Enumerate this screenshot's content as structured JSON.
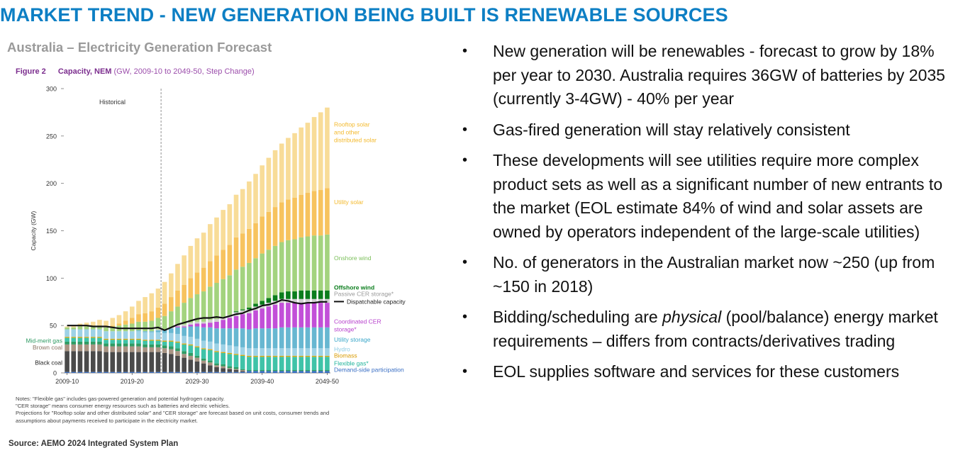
{
  "page_title": "MARKET TREND - NEW GENERATION BEING BUILT IS RENEWABLE SOURCES",
  "chart_heading": "Australia – Electricity Generation Forecast",
  "figure": {
    "number": "Figure 2",
    "caption": "Capacity, NEM",
    "detail": "(GW, 2009-10 to 2049-50, Step Change)"
  },
  "notes": [
    "Notes: \"Flexible gas\" includes gas-powered generation and potential hydrogen capacity.",
    "\"CER storage\" means consumer energy resources such as batteries and electric vehicles.",
    "Projections for \"Rooftop solar and other distributed solar\" and \"CER storage\" are forecast based on unit costs, consumer trends and",
    "assumptions about payments received to participate in the electricity market."
  ],
  "source": "Source: AEMO 2024 Integrated System Plan",
  "bullets": [
    {
      "pre": "New generation will be renewables - forecast to grow by 18% per year to 2030. Australia requires 36GW of batteries by 2035 (currently 3-4GW) - 40% per year",
      "em": "",
      "post": ""
    },
    {
      "pre": "Gas-fired generation will stay relatively consistent",
      "em": "",
      "post": ""
    },
    {
      "pre": "These developments will see utilities require more complex product sets as well as a significant number of new entrants to the market (EOL estimate 84% of wind and solar assets are owned by operators independent of the large-scale utilities)",
      "em": "",
      "post": ""
    },
    {
      "pre": "No. of generators in the Australian market now ~250 (up from ~150 in 2018)",
      "em": "",
      "post": ""
    },
    {
      "pre": "Bidding/scheduling are ",
      "em": "physical",
      "post": " (pool/balance) energy market requirements – differs from contracts/derivatives trading"
    },
    {
      "pre": "EOL supplies software and services for these customers",
      "em": "",
      "post": ""
    }
  ],
  "chart_data": {
    "type": "bar",
    "stacked": true,
    "title": "",
    "xlabel": "",
    "ylabel": "Capacity (GW)",
    "ylim": [
      0,
      300
    ],
    "yticks": [
      0,
      50,
      100,
      150,
      200,
      250,
      300
    ],
    "xtick_labels": [
      "2009-10",
      "2019-20",
      "2029-30",
      "2039-40",
      "2049-50"
    ],
    "historical_label": "Historical",
    "grid": false,
    "legend_placement": "right",
    "categories": [
      "2009-10",
      "2010-11",
      "2011-12",
      "2012-13",
      "2013-14",
      "2014-15",
      "2015-16",
      "2016-17",
      "2017-18",
      "2018-19",
      "2019-20",
      "2020-21",
      "2021-22",
      "2022-23",
      "2023-24",
      "2024-25",
      "2025-26",
      "2026-27",
      "2027-28",
      "2028-29",
      "2029-30",
      "2030-31",
      "2031-32",
      "2032-33",
      "2033-34",
      "2034-35",
      "2035-36",
      "2036-37",
      "2037-38",
      "2038-39",
      "2039-40",
      "2040-41",
      "2041-42",
      "2042-43",
      "2043-44",
      "2044-45",
      "2045-46",
      "2046-47",
      "2047-48",
      "2048-49",
      "2049-50"
    ],
    "series": [
      {
        "name": "Demand-side participation",
        "color": "#3a6fc4",
        "values": [
          1,
          1,
          1,
          1,
          1,
          1,
          1,
          1,
          1,
          1,
          1,
          1,
          1,
          1,
          1,
          1,
          1,
          1,
          1,
          1,
          1,
          1,
          1,
          1,
          1,
          1,
          1,
          1,
          2,
          2,
          2,
          2,
          2,
          2,
          2,
          2,
          2,
          2,
          2,
          2,
          2
        ]
      },
      {
        "name": "Black coal",
        "color": "#4a4a4a",
        "values": [
          22,
          22,
          22,
          22,
          22,
          22,
          21,
          21,
          21,
          21,
          21,
          21,
          21,
          21,
          21,
          20,
          19,
          17,
          15,
          13,
          11,
          9,
          7,
          5,
          4,
          3,
          2,
          1,
          0,
          0,
          0,
          0,
          0,
          0,
          0,
          0,
          0,
          0,
          0,
          0,
          0
        ]
      },
      {
        "name": "Brown coal",
        "color": "#a89483",
        "values": [
          7,
          7,
          7,
          7,
          7,
          7,
          6,
          6,
          6,
          6,
          6,
          6,
          5,
          5,
          5,
          5,
          5,
          5,
          4,
          4,
          4,
          3,
          3,
          2,
          2,
          1,
          1,
          1,
          0,
          0,
          0,
          0,
          0,
          0,
          0,
          0,
          0,
          0,
          0,
          0,
          0
        ]
      },
      {
        "name": "Mid-merit gas",
        "color": "#2f9b63",
        "values": [
          3,
          3,
          3,
          3,
          3,
          3,
          3,
          3,
          3,
          3,
          3,
          3,
          3,
          3,
          3,
          3,
          3,
          3,
          3,
          3,
          2,
          2,
          2,
          2,
          2,
          2,
          2,
          1,
          1,
          1,
          1,
          1,
          1,
          1,
          1,
          1,
          1,
          1,
          1,
          1,
          1
        ]
      },
      {
        "name": "Flexible gas*",
        "color": "#3fc3a8",
        "values": [
          4,
          4,
          4,
          4,
          4,
          4,
          4,
          4,
          4,
          4,
          4,
          4,
          4,
          4,
          4,
          4,
          5,
          6,
          7,
          8,
          9,
          10,
          11,
          12,
          12,
          13,
          13,
          14,
          14,
          14,
          14,
          14,
          14,
          14,
          14,
          14,
          14,
          14,
          14,
          14,
          14
        ]
      },
      {
        "name": "Biomass",
        "color": "#e4a800",
        "values": [
          1,
          1,
          1,
          1,
          1,
          1,
          1,
          1,
          1,
          1,
          1,
          1,
          1,
          1,
          1,
          1,
          1,
          1,
          1,
          1,
          1,
          1,
          1,
          1,
          1,
          1,
          1,
          1,
          1,
          1,
          1,
          1,
          1,
          1,
          1,
          1,
          1,
          1,
          1,
          1,
          1
        ]
      },
      {
        "name": "Hydro",
        "color": "#9ed2e6",
        "values": [
          8,
          8,
          8,
          8,
          8,
          8,
          8,
          8,
          8,
          8,
          8,
          8,
          8,
          8,
          8,
          8,
          8,
          8,
          8,
          8,
          8,
          8,
          8,
          8,
          8,
          8,
          8,
          8,
          8,
          8,
          8,
          8,
          8,
          8,
          8,
          8,
          8,
          8,
          8,
          8,
          8
        ]
      },
      {
        "name": "Utility storage",
        "color": "#67b7d1",
        "values": [
          0,
          0,
          0,
          0,
          0,
          0,
          0,
          0,
          0,
          0,
          0,
          1,
          1,
          1,
          2,
          3,
          5,
          7,
          9,
          11,
          13,
          14,
          15,
          16,
          17,
          18,
          19,
          20,
          20,
          21,
          21,
          21,
          21,
          22,
          22,
          22,
          22,
          22,
          22,
          22,
          22
        ]
      },
      {
        "name": "Coordinated CER storage*",
        "color": "#c24fd8",
        "values": [
          0,
          0,
          0,
          0,
          0,
          0,
          0,
          0,
          0,
          0,
          0,
          0,
          0,
          0,
          0,
          0,
          0,
          1,
          1,
          2,
          3,
          4,
          5,
          7,
          9,
          11,
          13,
          15,
          17,
          19,
          21,
          23,
          25,
          26,
          26,
          26,
          26,
          26,
          26,
          26,
          26
        ]
      },
      {
        "name": "Passive CER storage*",
        "color": "#cfcfcf",
        "values": [
          0,
          0,
          0,
          0,
          0,
          0,
          0,
          0,
          0,
          0,
          0,
          0,
          0,
          0,
          1,
          1,
          1,
          1,
          2,
          2,
          2,
          2,
          3,
          3,
          3,
          3,
          4,
          4,
          4,
          4,
          4,
          4,
          4,
          4,
          4,
          4,
          4,
          4,
          4,
          4,
          4
        ]
      },
      {
        "name": "Offshore wind",
        "color": "#0a7d1c",
        "values": [
          0,
          0,
          0,
          0,
          0,
          0,
          0,
          0,
          0,
          0,
          0,
          0,
          0,
          0,
          0,
          0,
          0,
          0,
          0,
          0,
          0,
          0,
          0,
          0,
          0,
          0,
          1,
          1,
          2,
          3,
          4,
          5,
          6,
          7,
          8,
          8,
          9,
          9,
          9,
          9,
          9
        ]
      },
      {
        "name": "Onshore wind",
        "color": "#a3d37e",
        "values": [
          2,
          2,
          3,
          3,
          3,
          4,
          4,
          5,
          6,
          7,
          8,
          9,
          10,
          11,
          12,
          14,
          17,
          20,
          23,
          26,
          29,
          32,
          35,
          38,
          40,
          42,
          44,
          45,
          47,
          48,
          50,
          51,
          52,
          53,
          54,
          55,
          56,
          57,
          58,
          58,
          59
        ]
      },
      {
        "name": "Utility solar",
        "color": "#f7c35e",
        "values": [
          0,
          0,
          0,
          0,
          0,
          0,
          0,
          1,
          2,
          4,
          6,
          8,
          9,
          10,
          11,
          13,
          15,
          17,
          19,
          21,
          23,
          25,
          27,
          29,
          31,
          32,
          34,
          35,
          36,
          37,
          39,
          40,
          41,
          42,
          43,
          44,
          45,
          46,
          47,
          48,
          49
        ]
      },
      {
        "name": "Rooftop solar and other distributed solar",
        "color": "#f8dc98",
        "values": [
          1,
          2,
          3,
          4,
          5,
          6,
          7,
          8,
          9,
          10,
          12,
          14,
          17,
          19,
          20,
          23,
          25,
          28,
          31,
          34,
          36,
          37,
          39,
          40,
          42,
          43,
          45,
          47,
          50,
          52,
          54,
          57,
          60,
          62,
          65,
          68,
          71,
          74,
          78,
          82,
          85
        ]
      }
    ],
    "dispatchable_capacity": {
      "name": "Dispatchable capacity",
      "color": "#111111",
      "values": [
        50,
        50,
        50,
        50,
        49,
        49,
        49,
        48,
        47,
        47,
        47,
        47,
        47,
        47,
        48,
        45,
        48,
        51,
        53,
        55,
        57,
        58,
        58,
        59,
        58,
        60,
        62,
        63,
        66,
        68,
        71,
        72,
        74,
        77,
        76,
        74,
        73,
        74,
        74,
        75,
        75
      ]
    },
    "legend": [
      {
        "label": "Rooftop solar and other distributed solar",
        "color": "#f3b92c",
        "y": 260
      },
      {
        "label": "Utility solar",
        "color": "#f3b92c",
        "y": 178
      },
      {
        "label": "Onshore wind",
        "color": "#7bbf5a",
        "y": 119
      },
      {
        "label": "Offshore wind",
        "color": "#0a7d1c",
        "y": 88
      },
      {
        "label": "Passive CER storage*",
        "color": "#9a9a9a",
        "y": 81
      },
      {
        "label": "Dispatchable capacity",
        "color": "#111111",
        "y": 73
      },
      {
        "label": "Coordinated CER storage*",
        "color": "#b63fcc",
        "y": 52
      },
      {
        "label": "Utility storage",
        "color": "#3ba7c9",
        "y": 33
      },
      {
        "label": "Hydro",
        "color": "#8ccbe3",
        "y": 23
      },
      {
        "label": "Biomass",
        "color": "#d99a00",
        "y": 16
      },
      {
        "label": "Flexible gas*",
        "color": "#1fb39a",
        "y": 8
      },
      {
        "label": "Demand-side participation",
        "color": "#3a6fc4",
        "y": 1
      }
    ],
    "left_labels": [
      {
        "label": "Mid-merit gas",
        "color": "#2f9b63",
        "y": 34
      },
      {
        "label": "Brown coal",
        "color": "#8a7565",
        "y": 27
      },
      {
        "label": "Black coal",
        "color": "#222222",
        "y": 11
      }
    ]
  }
}
